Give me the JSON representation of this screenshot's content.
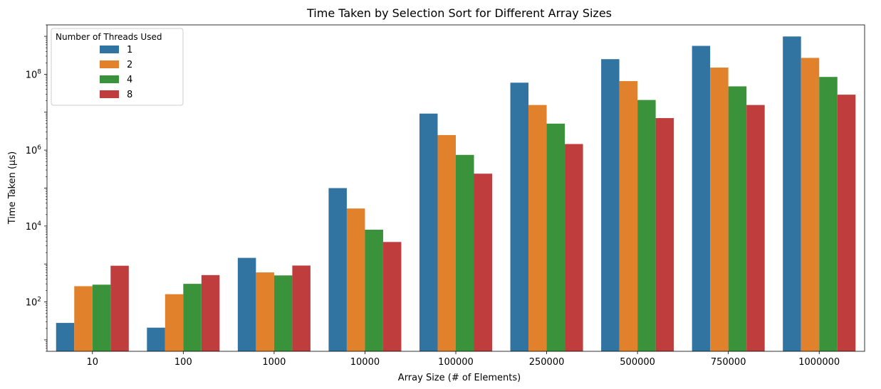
{
  "chart_data": {
    "type": "bar",
    "title": "Time Taken by Selection Sort for Different Array Sizes",
    "xlabel": "Array Size (# of Elements)",
    "ylabel": "Time Taken (μs)",
    "yscale": "log",
    "ylim": [
      5,
      2000000000
    ],
    "yticks": [
      100,
      10000,
      1000000,
      100000000
    ],
    "ytick_labels": [
      {
        "base": "10",
        "exp": "2"
      },
      {
        "base": "10",
        "exp": "4"
      },
      {
        "base": "10",
        "exp": "6"
      },
      {
        "base": "10",
        "exp": "8"
      }
    ],
    "categories": [
      "10",
      "100",
      "1000",
      "10000",
      "100000",
      "250000",
      "500000",
      "750000",
      "1000000"
    ],
    "legend": {
      "title": "Number of Threads Used",
      "placement": "top-left"
    },
    "series": [
      {
        "name": "1",
        "color": "#3274a1",
        "values": [
          28,
          21,
          1450,
          100000,
          9200000,
          60000000,
          250000000,
          560000000,
          990000000
        ]
      },
      {
        "name": "2",
        "color": "#e1812c",
        "values": [
          260,
          160,
          600,
          29000,
          2500000,
          15500000,
          66000000,
          150000000,
          270000000
        ]
      },
      {
        "name": "4",
        "color": "#3a923a",
        "values": [
          285,
          300,
          500,
          8000,
          750000,
          5000000,
          21000000,
          48000000,
          85000000
        ]
      },
      {
        "name": "8",
        "color": "#c03d3e",
        "values": [
          900,
          510,
          910,
          3800,
          240000,
          1450000,
          7000000,
          15500000,
          29000000
        ]
      }
    ],
    "grid": false
  }
}
